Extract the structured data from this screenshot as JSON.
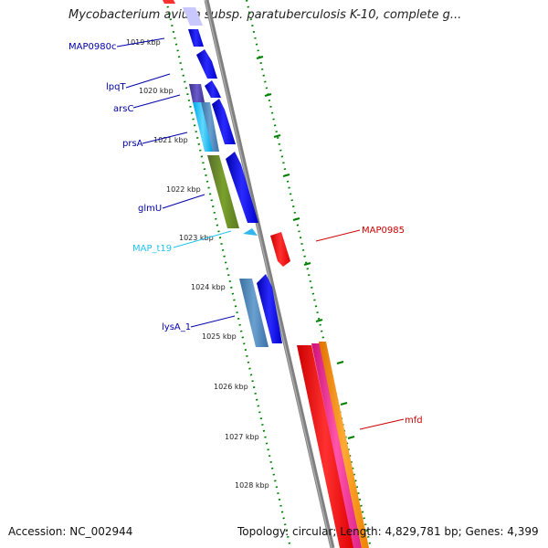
{
  "title": "Mycobacterium avium subsp. paratuberculosis K-10, complete g...",
  "accession": "Accession: NC_002944",
  "summary": "Topology: circular; Length: 4,829,781 bp; Genes: 4,399",
  "scale_labels": [
    "1019 kbp",
    "1020 kbp",
    "1021 kbp",
    "1022 kbp",
    "1023 kbp",
    "1024 kbp",
    "1025 kbp",
    "1026 kbp",
    "1027 kbp",
    "1028 kbp"
  ],
  "colors": {
    "backbone": "#808080",
    "tick": "#008000",
    "cds_forward": "#0000ee",
    "label_blue": "#0000aa",
    "label_cyan": "#22c3ee",
    "label_red": "#cc0000",
    "red_feature": "#ee0000",
    "pink_feature": "#ee2288",
    "orange_feature": "#ff8800",
    "olive_feature": "#6b8e23",
    "steelblue_feature": "#4682b4",
    "purple_feature": "#483d8b",
    "cyan_feature": "#00bfff"
  },
  "gene_labels": {
    "map0980c": "MAP0980c",
    "lpqt": "lpqT",
    "arsc": "arsC",
    "prsa": "prsA",
    "glmu": "glmU",
    "map_t19": "MAP_t19",
    "lysa_1": "lysA_1",
    "map0985": "MAP0985",
    "mfd": "mfd"
  }
}
